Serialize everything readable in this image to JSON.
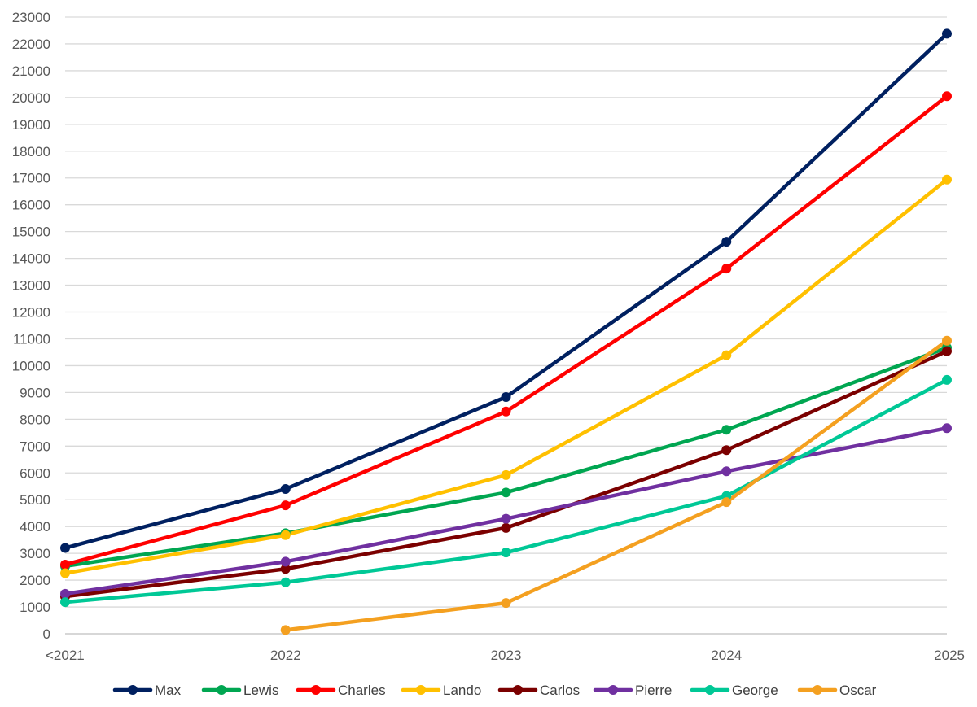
{
  "chart_data": {
    "type": "line",
    "title": "",
    "xlabel": "",
    "ylabel": "",
    "categories": [
      "<2021",
      "2022",
      "2023",
      "2024",
      "2025"
    ],
    "ylim": [
      0,
      23000
    ],
    "yticks": [
      0,
      1000,
      2000,
      3000,
      4000,
      5000,
      6000,
      7000,
      8000,
      9000,
      10000,
      11000,
      12000,
      13000,
      14000,
      15000,
      16000,
      17000,
      18000,
      19000,
      20000,
      21000,
      22000,
      23000
    ],
    "grid": true,
    "legend_position": "bottom",
    "series": [
      {
        "name": "Max",
        "color": "#002060",
        "values": [
          3200,
          5400,
          8830,
          14620,
          22380
        ]
      },
      {
        "name": "Lewis",
        "color": "#00A651",
        "values": [
          2520,
          3750,
          5270,
          7610,
          10670
        ]
      },
      {
        "name": "Charles",
        "color": "#FF0000",
        "values": [
          2580,
          4790,
          8290,
          13620,
          20050
        ]
      },
      {
        "name": "Lando",
        "color": "#FFC000",
        "values": [
          2260,
          3680,
          5920,
          10390,
          16940
        ]
      },
      {
        "name": "Carlos",
        "color": "#7B0000",
        "values": [
          1390,
          2420,
          3950,
          6850,
          10540
        ]
      },
      {
        "name": "Pierre",
        "color": "#7030A0",
        "values": [
          1490,
          2690,
          4290,
          6060,
          7670
        ]
      },
      {
        "name": "George",
        "color": "#00C896",
        "values": [
          1180,
          1920,
          3030,
          5140,
          9470
        ]
      },
      {
        "name": "Oscar",
        "color": "#F4A020",
        "values": [
          null,
          140,
          1150,
          4910,
          10930
        ]
      }
    ]
  }
}
